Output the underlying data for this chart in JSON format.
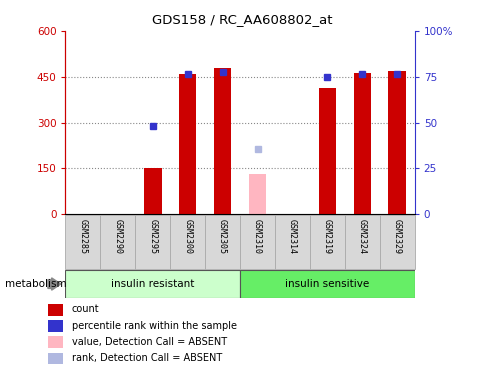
{
  "title": "GDS158 / RC_AA608802_at",
  "samples": [
    "GSM2285",
    "GSM2290",
    "GSM2295",
    "GSM2300",
    "GSM2305",
    "GSM2310",
    "GSM2314",
    "GSM2319",
    "GSM2324",
    "GSM2329"
  ],
  "counts": [
    null,
    null,
    150,
    460,
    480,
    null,
    null,
    415,
    463,
    470
  ],
  "ranks": [
    null,
    null,
    290,
    460,
    465,
    null,
    null,
    448,
    460,
    460
  ],
  "absent_value": [
    null,
    null,
    null,
    null,
    null,
    130,
    null,
    null,
    null,
    null
  ],
  "absent_rank": [
    null,
    null,
    null,
    null,
    null,
    215,
    null,
    null,
    null,
    null
  ],
  "group1_label": "insulin resistant",
  "group1_indices": [
    0,
    1,
    2,
    3,
    4
  ],
  "group2_label": "insulin sensitive",
  "group2_indices": [
    5,
    6,
    7,
    8,
    9
  ],
  "ylim_left": [
    0,
    600
  ],
  "ylim_right": [
    0,
    100
  ],
  "yticks_left": [
    0,
    150,
    300,
    450,
    600
  ],
  "yticks_right": [
    0,
    25,
    50,
    75,
    100
  ],
  "ytick_labels_left": [
    "0",
    "150",
    "300",
    "450",
    "600"
  ],
  "ytick_labels_right": [
    "0",
    "25",
    "50",
    "75",
    "100%"
  ],
  "bar_color": "#cc0000",
  "rank_dot_color": "#3333cc",
  "absent_bar_color": "#ffb6c1",
  "absent_rank_color": "#b0b8e0",
  "grid_color": "#888888",
  "plot_bg": "#ffffff",
  "group_bg1": "#ccffcc",
  "group_bg2": "#66ee66",
  "sample_bg": "#d8d8d8",
  "bar_width": 0.5,
  "legend_items": [
    {
      "label": "count",
      "color": "#cc0000"
    },
    {
      "label": "percentile rank within the sample",
      "color": "#3333cc"
    },
    {
      "label": "value, Detection Call = ABSENT",
      "color": "#ffb6c1"
    },
    {
      "label": "rank, Detection Call = ABSENT",
      "color": "#b0b8e0"
    }
  ]
}
